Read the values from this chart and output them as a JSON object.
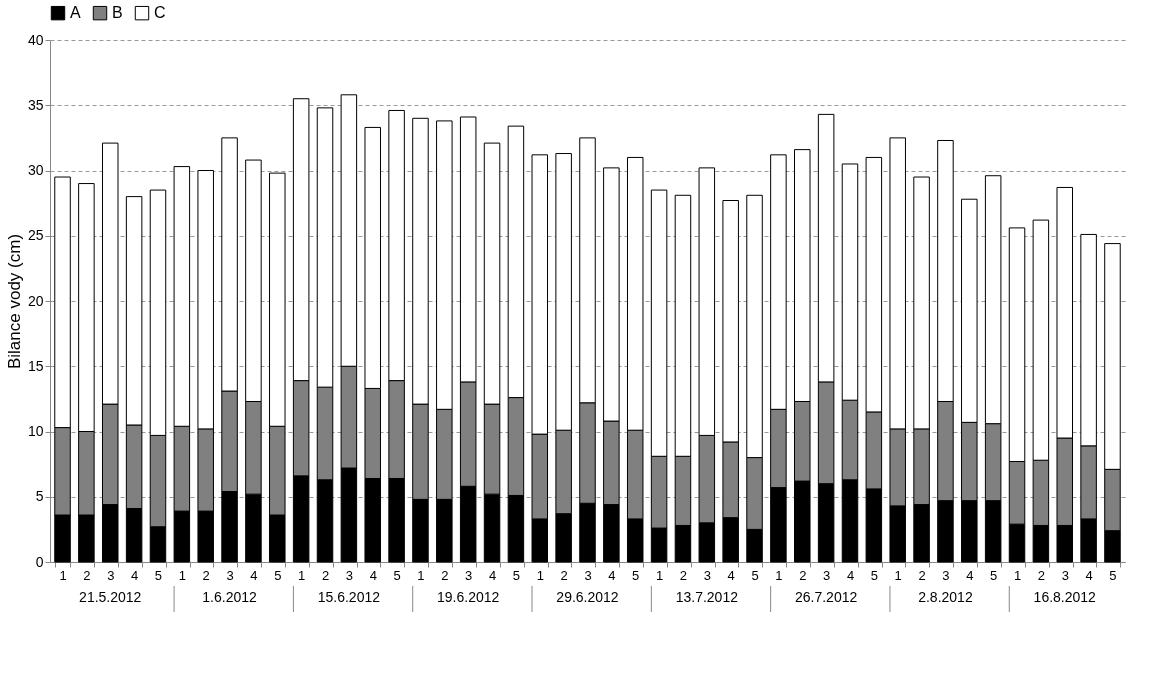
{
  "chart_data": {
    "type": "bar",
    "stacked": true,
    "ylabel": "Bilance vody (cm)",
    "categories": [
      "1",
      "2",
      "3",
      "4",
      "5",
      "1",
      "2",
      "3",
      "4",
      "5",
      "1",
      "2",
      "3",
      "4",
      "5",
      "1",
      "2",
      "3",
      "4",
      "5",
      "1",
      "2",
      "3",
      "4",
      "5",
      "1",
      "2",
      "3",
      "4",
      "5",
      "1",
      "2",
      "3",
      "4",
      "5",
      "1",
      "2",
      "3",
      "4",
      "5",
      "1",
      "2",
      "3",
      "4",
      "5"
    ],
    "annotations": [
      "21.5.2012",
      "1.6.2012",
      "15.6.2012",
      "19.6.2012",
      "29.6.2012",
      "13.7.2012",
      "26.7.2012",
      "2.8.2012",
      "16.8.2012"
    ],
    "series": [
      {
        "name": "A",
        "color": "#000000",
        "values": [
          3.6,
          3.6,
          4.4,
          4.1,
          2.7,
          3.9,
          3.9,
          5.4,
          5.2,
          3.6,
          6.6,
          6.3,
          7.2,
          6.4,
          6.4,
          4.8,
          4.8,
          5.8,
          5.2,
          5.1,
          3.3,
          3.7,
          4.5,
          4.4,
          3.3,
          2.6,
          2.8,
          3.0,
          3.4,
          2.5,
          5.7,
          6.2,
          6.0,
          6.3,
          5.6,
          4.3,
          4.4,
          4.7,
          4.7,
          4.7,
          2.9,
          2.8,
          2.8,
          3.3,
          2.4
        ]
      },
      {
        "name": "B",
        "color": "#808080",
        "values": [
          6.7,
          6.4,
          7.7,
          6.4,
          7.0,
          6.5,
          6.3,
          7.7,
          7.1,
          6.8,
          7.3,
          7.1,
          7.8,
          6.9,
          7.5,
          7.3,
          6.9,
          8.0,
          6.9,
          7.5,
          6.5,
          6.4,
          7.7,
          6.4,
          6.8,
          5.5,
          5.3,
          6.7,
          5.8,
          5.5,
          6.0,
          6.1,
          7.8,
          6.1,
          5.9,
          5.9,
          5.8,
          7.6,
          6.0,
          5.9,
          4.8,
          5.0,
          6.7,
          5.6,
          4.7
        ]
      },
      {
        "name": "C",
        "color": "#ffffff",
        "values": [
          19.2,
          19.0,
          20.0,
          17.5,
          18.8,
          19.9,
          19.8,
          19.4,
          18.5,
          19.4,
          21.6,
          21.4,
          20.8,
          20.0,
          20.7,
          21.9,
          22.1,
          20.3,
          20.0,
          20.8,
          21.4,
          21.2,
          20.3,
          19.4,
          20.9,
          20.4,
          20.0,
          20.5,
          18.5,
          20.1,
          19.5,
          19.3,
          20.5,
          18.1,
          19.5,
          22.3,
          19.3,
          20.0,
          17.1,
          19.0,
          17.9,
          18.4,
          19.2,
          16.2,
          17.3
        ]
      }
    ],
    "ylim": [
      0,
      40
    ],
    "yticks": [
      0,
      5,
      10,
      15,
      20,
      25,
      30,
      35,
      40
    ],
    "grid": "y",
    "legend": "top"
  }
}
